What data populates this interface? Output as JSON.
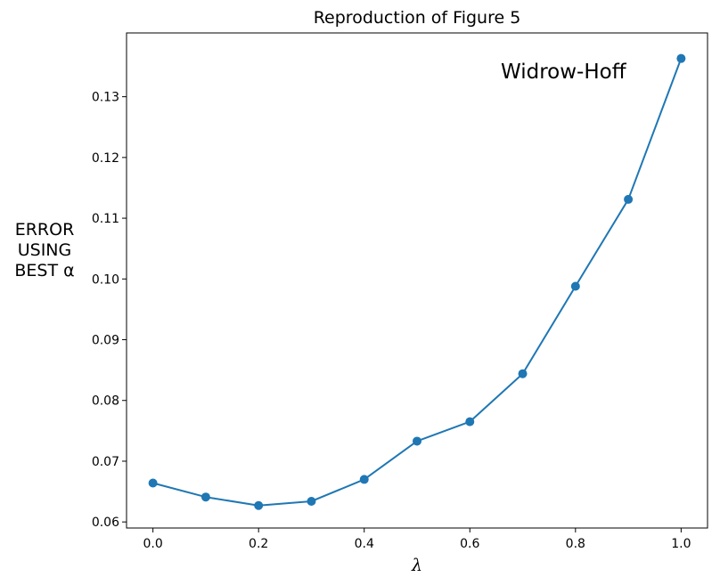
{
  "chart_data": {
    "type": "line",
    "title": "Reproduction of Figure 5",
    "xlabel": "λ",
    "ylabel_lines": [
      "ERROR",
      "USING",
      "BEST α"
    ],
    "annotation": "Widrow-Hoff",
    "x": [
      0.0,
      0.1,
      0.2,
      0.3,
      0.4,
      0.5,
      0.6,
      0.7,
      0.8,
      0.9,
      1.0
    ],
    "series": [
      {
        "values": [
          0.0664,
          0.0641,
          0.0627,
          0.0634,
          0.067,
          0.0733,
          0.0765,
          0.0844,
          0.0988,
          0.1131,
          0.1363
        ],
        "color": "#1f77b4"
      }
    ],
    "xlim": [
      -0.05,
      1.05
    ],
    "ylim": [
      0.059,
      0.1405
    ],
    "xticks": [
      0.0,
      0.2,
      0.4,
      0.6,
      0.8,
      1.0
    ],
    "xtick_labels": [
      "0.0",
      "0.2",
      "0.4",
      "0.6",
      "0.8",
      "1.0"
    ],
    "yticks": [
      0.06,
      0.07,
      0.08,
      0.09,
      0.1,
      0.11,
      0.12,
      0.13
    ],
    "ytick_labels": [
      "0.06",
      "0.07",
      "0.08",
      "0.09",
      "0.10",
      "0.11",
      "0.12",
      "0.13"
    ],
    "grid": false,
    "legend": "none"
  }
}
